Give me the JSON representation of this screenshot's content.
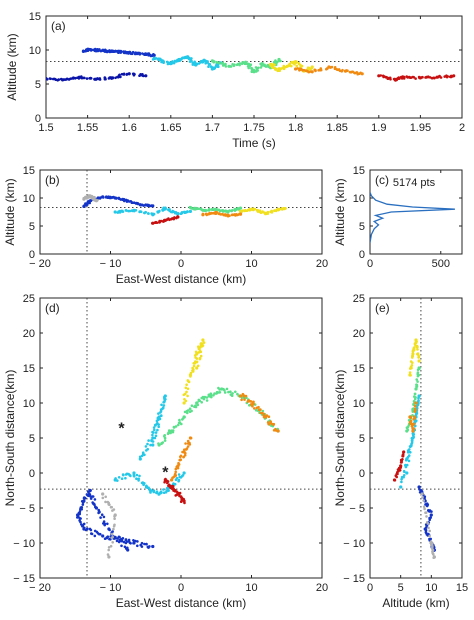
{
  "chart_data": [
    {
      "panel": "(a)",
      "type": "scatter",
      "colormap": "time (jet: blue to dark red)",
      "xlabel": "Time (s)",
      "ylabel": "Altitude (km)",
      "xlim": [
        1.5,
        2.0
      ],
      "ylim": [
        0,
        15
      ],
      "xticks": [
        "1.5",
        "1.55",
        "1.6",
        "1.65",
        "1.7",
        "1.75",
        "1.8",
        "1.85",
        "1.9",
        "1.95",
        "2"
      ],
      "yticks": [
        "0",
        "5",
        "10",
        "15"
      ],
      "reference_lines": {
        "y": 8.3
      },
      "series": [
        {
          "x": [
            1.5,
            1.52,
            1.54,
            1.56,
            1.58,
            1.6,
            1.62
          ],
          "y": [
            5.8,
            5.6,
            6.0,
            5.7,
            5.9,
            6.5,
            6.2
          ],
          "color": "#0a14a8"
        },
        {
          "x": [
            1.545,
            1.55,
            1.56,
            1.57,
            1.58,
            1.59,
            1.6,
            1.61,
            1.62,
            1.63
          ],
          "y": [
            9.8,
            10.1,
            10.0,
            9.9,
            9.8,
            9.7,
            9.6,
            9.5,
            9.4,
            9.2
          ],
          "color": "#1434c8"
        },
        {
          "x": [
            1.63,
            1.64,
            1.65,
            1.66,
            1.67,
            1.68,
            1.69,
            1.7,
            1.71
          ],
          "y": [
            8.8,
            8.4,
            8.0,
            8.6,
            9.0,
            7.8,
            8.5,
            7.2,
            8.1
          ],
          "color": "#24c8e8"
        },
        {
          "x": [
            1.7,
            1.72,
            1.74,
            1.75,
            1.76,
            1.77,
            1.78
          ],
          "y": [
            8.4,
            7.6,
            8.2,
            6.8,
            8.0,
            7.4,
            8.6
          ],
          "color": "#5ae08a"
        },
        {
          "x": [
            1.77,
            1.78,
            1.79,
            1.8,
            1.81,
            1.82
          ],
          "y": [
            7.9,
            7.0,
            7.6,
            8.3,
            6.9,
            7.5
          ],
          "color": "#f0e020"
        },
        {
          "x": [
            1.8,
            1.82,
            1.84,
            1.86,
            1.88
          ],
          "y": [
            7.2,
            6.8,
            7.5,
            6.9,
            6.5
          ],
          "color": "#f08a10"
        },
        {
          "x": [
            1.9,
            1.92,
            1.93,
            1.95,
            1.97,
            1.99
          ],
          "y": [
            6.2,
            5.6,
            6.0,
            5.9,
            6.0,
            6.2
          ],
          "color": "#c81010"
        }
      ]
    },
    {
      "panel": "(b)",
      "type": "scatter",
      "xlabel": "East-West distance (km)",
      "ylabel": "Altitude (km)",
      "xlim": [
        -20,
        25
      ],
      "ylim": [
        0,
        15
      ],
      "xticks": [
        "− 20",
        "− 10",
        "0",
        "10",
        "20"
      ],
      "yticks": [
        "0",
        "5",
        "10",
        "15"
      ],
      "reference_lines": {
        "x": -12.5,
        "y": 8.3
      },
      "series": [
        {
          "x": [
            -13,
            -12,
            -10,
            -8,
            -6,
            -4,
            -2
          ],
          "y": [
            8.5,
            9.5,
            10.2,
            10.0,
            9.5,
            8.8,
            8.6
          ],
          "color": "#1434c8"
        },
        {
          "x": [
            -13,
            -12,
            -11
          ],
          "y": [
            9.8,
            10.4,
            9.5
          ],
          "color": "#b0b0b0"
        },
        {
          "x": [
            -8,
            -5,
            -2,
            0,
            2,
            4
          ],
          "y": [
            7.5,
            7.8,
            7.0,
            8.2,
            7.2,
            7.6
          ],
          "color": "#24c8e8"
        },
        {
          "x": [
            4,
            6,
            8,
            10,
            12
          ],
          "y": [
            8.3,
            7.8,
            8.0,
            7.5,
            8.2
          ],
          "color": "#5ae08a"
        },
        {
          "x": [
            12,
            14,
            16,
            18,
            19
          ],
          "y": [
            7.6,
            8.0,
            7.2,
            7.9,
            8.1
          ],
          "color": "#f0e020"
        },
        {
          "x": [
            6,
            8,
            10,
            12
          ],
          "y": [
            7.0,
            7.4,
            6.8,
            7.1
          ],
          "color": "#f08a10"
        },
        {
          "x": [
            -2,
            0,
            2
          ],
          "y": [
            5.5,
            6.0,
            6.6
          ],
          "color": "#c81010"
        }
      ]
    },
    {
      "panel": "(c)",
      "type": "line",
      "annotation": "5174 pts",
      "xlabel": "",
      "ylabel": "Altitude (km)",
      "xlim": [
        0,
        650
      ],
      "ylim": [
        0,
        15
      ],
      "xticks": [
        "0",
        "500"
      ],
      "yticks": [
        "0",
        "5",
        "10",
        "15"
      ],
      "series": [
        {
          "x": [
            0,
            10,
            30,
            60,
            30,
            90,
            40,
            150,
            600,
            300,
            120,
            40,
            10,
            0
          ],
          "y": [
            2.0,
            3.5,
            4.5,
            5.2,
            5.8,
            6.4,
            6.9,
            7.5,
            8.0,
            8.4,
            8.9,
            9.6,
            10.4,
            11.0
          ],
          "color": "#2a6fc0"
        }
      ]
    },
    {
      "panel": "(d)",
      "type": "scatter",
      "xlabel": "East-West distance (km)",
      "ylabel": "North-South distance(km)",
      "xlim": [
        -20,
        25
      ],
      "ylim": [
        -15,
        25
      ],
      "xticks": [
        "− 20",
        "− 10",
        "0",
        "10",
        "20"
      ],
      "yticks": [
        "− 15",
        "− 10",
        "− 5",
        "0",
        "5",
        "10",
        "15",
        "20",
        "25"
      ],
      "reference_lines": {
        "x": -12.5,
        "y": -2.3
      },
      "markers": [
        {
          "label": "*",
          "x": -7,
          "y": 6.5
        },
        {
          "label": "*",
          "x": 0,
          "y": 0.2
        }
      ],
      "series": [
        {
          "x": [
            -12,
            -13,
            -14,
            -13,
            -10,
            -7,
            -5,
            -2
          ],
          "y": [
            -2.5,
            -4,
            -6,
            -8,
            -9,
            -9.5,
            -10,
            -10.5
          ],
          "color": "#1434c8"
        },
        {
          "x": [
            -12,
            -11,
            -9,
            -6
          ],
          "y": [
            -2.5,
            -5,
            -8,
            -11
          ],
          "color": "#1434c8"
        },
        {
          "x": [
            -10,
            -8,
            -9
          ],
          "y": [
            -3,
            -6,
            -12
          ],
          "color": "#b0b0b0"
        },
        {
          "x": [
            -8,
            -5,
            -3,
            -1,
            1,
            3
          ],
          "y": [
            -1,
            0,
            -2,
            -3,
            -2,
            0
          ],
          "color": "#24c8e8"
        },
        {
          "x": [
            -4,
            -2,
            -1,
            0,
            -2
          ],
          "y": [
            2,
            5,
            8,
            11,
            4
          ],
          "color": "#24c8e8"
        },
        {
          "x": [
            -1,
            1,
            3,
            5,
            7,
            9,
            12,
            15,
            18
          ],
          "y": [
            4,
            6,
            8,
            10,
            11,
            12,
            11,
            9,
            6
          ],
          "color": "#5ae08a"
        },
        {
          "x": [
            3,
            4,
            5,
            6,
            5
          ],
          "y": [
            10,
            14,
            17,
            19,
            15
          ],
          "color": "#f0e020"
        },
        {
          "x": [
            12,
            14,
            16,
            18
          ],
          "y": [
            11,
            10,
            8,
            6
          ],
          "color": "#f08a10"
        },
        {
          "x": [
            1,
            2,
            3,
            4
          ],
          "y": [
            -1,
            1,
            3,
            5
          ],
          "color": "#f08a10"
        },
        {
          "x": [
            0,
            1,
            2,
            3
          ],
          "y": [
            -1,
            -2,
            -3,
            -4
          ],
          "color": "#c81010"
        }
      ]
    },
    {
      "panel": "(e)",
      "type": "scatter",
      "xlabel": "Altitude (km)",
      "ylabel": "North-South distance(km)",
      "xlim": [
        0,
        15
      ],
      "ylim": [
        -15,
        25
      ],
      "xticks": [
        "0",
        "5",
        "10",
        "15"
      ],
      "yticks": [
        "− 15",
        "− 10",
        "− 5",
        "0",
        "5",
        "10",
        "15",
        "20",
        "25"
      ],
      "reference_lines": {
        "x": 8.3,
        "y": -2.3
      },
      "series": [
        {
          "x": [
            8,
            9,
            10,
            9,
            10,
            10.5
          ],
          "y": [
            -2,
            -4,
            -6,
            -8,
            -10,
            -11
          ],
          "color": "#1434c8"
        },
        {
          "x": [
            8.5,
            10,
            10.5
          ],
          "y": [
            -3,
            -10,
            -12
          ],
          "color": "#b0b0b0"
        },
        {
          "x": [
            5,
            6,
            7,
            7.5,
            8,
            6
          ],
          "y": [
            -2,
            2,
            5,
            8,
            11,
            0
          ],
          "color": "#24c8e8"
        },
        {
          "x": [
            6,
            7,
            7.5,
            8
          ],
          "y": [
            6,
            9,
            12,
            15
          ],
          "color": "#5ae08a"
        },
        {
          "x": [
            6.5,
            7,
            7.5,
            8
          ],
          "y": [
            14,
            17,
            19,
            16
          ],
          "color": "#f0e020"
        },
        {
          "x": [
            6.5,
            7,
            7.5
          ],
          "y": [
            8,
            6,
            10
          ],
          "color": "#f08a10"
        },
        {
          "x": [
            4,
            5,
            5.5
          ],
          "y": [
            -1,
            1,
            3
          ],
          "color": "#c81010"
        }
      ]
    }
  ]
}
